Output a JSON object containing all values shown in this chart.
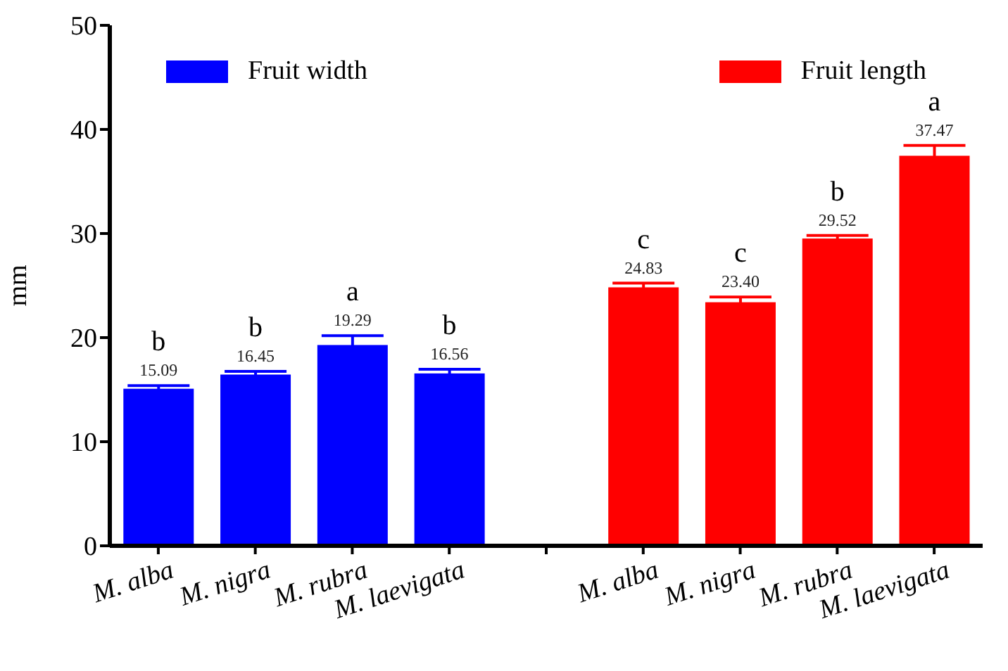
{
  "chart_data": {
    "type": "bar",
    "ylabel": "mm",
    "categories": [
      "M. alba",
      "M. nigra",
      "M. rubra",
      "M. laevigata",
      null,
      "M. alba",
      "M. nigra",
      "M. rubra",
      "M. laevigata"
    ],
    "series": [
      {
        "name": "Fruit width",
        "color": "#0000ff",
        "values": [
          15.09,
          16.45,
          19.29,
          16.56,
          null,
          null,
          null,
          null,
          null
        ],
        "errors": [
          0.3,
          0.3,
          0.9,
          0.4,
          null,
          null,
          null,
          null,
          null
        ],
        "value_labels": [
          "15.09",
          "16.45",
          "19.29",
          "16.56",
          null,
          null,
          null,
          null,
          null
        ]
      },
      {
        "name": "Fruit length",
        "color": "#ff0000",
        "values": [
          null,
          null,
          null,
          null,
          null,
          24.83,
          23.4,
          29.52,
          37.47
        ],
        "errors": [
          null,
          null,
          null,
          null,
          null,
          0.4,
          0.5,
          0.3,
          1.0
        ],
        "value_labels": [
          null,
          null,
          null,
          null,
          null,
          "24.83",
          "23.40",
          "29.52",
          "37.47"
        ]
      }
    ],
    "annotations": [
      "b",
      "b",
      "a",
      "b",
      "c",
      "c",
      "b",
      "a"
    ],
    "ylim": [
      0,
      50
    ],
    "yticks": [
      0,
      10,
      20,
      30,
      40,
      50
    ],
    "grid": false,
    "legend": "top"
  }
}
